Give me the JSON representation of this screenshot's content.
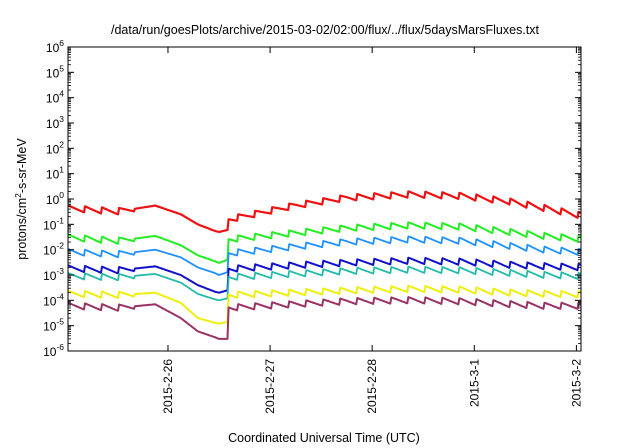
{
  "chart_data": {
    "type": "line",
    "title": "/data/run/goesPlots/archive/2015-03-02/02:00/flux/../flux/5daysMarsFluxes.txt",
    "xlabel": "Coordinated Universal Time (UTC)",
    "ylabel": "protons/cm2-s-sr-MeV",
    "yscale": "log",
    "ylim": [
      1e-06,
      1000000.0
    ],
    "xlim": [
      "2015-02-25T00:30",
      "2015-03-02T01:05"
    ],
    "grid": false,
    "legend": "none",
    "x_ticks": [
      {
        "label": "2015-2-26",
        "time": "2015-02-26T00:00"
      },
      {
        "label": "2015-2-27",
        "time": "2015-02-27T00:00"
      },
      {
        "label": "2015-2-28",
        "time": "2015-02-28T00:00"
      },
      {
        "label": "2015-3-1",
        "time": "2015-03-01T00:00"
      },
      {
        "label": "2015-3-2",
        "time": "2015-03-02T00:00"
      }
    ],
    "y_ticks": [
      {
        "base": "10",
        "exp": "-6",
        "value": 1e-06
      },
      {
        "base": "10",
        "exp": "-5",
        "value": 1e-05
      },
      {
        "base": "10",
        "exp": "-4",
        "value": 0.0001
      },
      {
        "base": "10",
        "exp": "-3",
        "value": 0.001
      },
      {
        "base": "10",
        "exp": "-2",
        "value": 0.01
      },
      {
        "base": "10",
        "exp": "-1",
        "value": 0.1
      },
      {
        "base": "10",
        "exp": "0",
        "value": 1
      },
      {
        "base": "10",
        "exp": "1",
        "value": 10
      },
      {
        "base": "10",
        "exp": "2",
        "value": 100
      },
      {
        "base": "10",
        "exp": "3",
        "value": 1000
      },
      {
        "base": "10",
        "exp": "4",
        "value": 10000
      },
      {
        "base": "10",
        "exp": "5",
        "value": 100000
      },
      {
        "base": "10",
        "exp": "6",
        "value": 1000000
      }
    ],
    "sawtooth_period_hours": 4,
    "series": [
      {
        "color": "#ee1111",
        "width": 2.2,
        "points": [
          [
            "2015-02-25T00:30",
            0.42
          ],
          [
            "2015-02-25T12:00",
            0.32
          ],
          [
            "2015-02-25T21:00",
            0.55
          ],
          [
            "2015-02-26T03:00",
            0.25
          ],
          [
            "2015-02-26T07:00",
            0.1
          ],
          [
            "2015-02-26T11:00",
            0.055
          ],
          [
            "2015-02-26T12:00",
            0.05
          ],
          [
            "2015-02-26T14:00",
            0.06
          ],
          [
            "2015-02-26T14:01",
            0.15
          ],
          [
            "2015-02-27T06:00",
            0.55
          ],
          [
            "2015-02-27T18:00",
            1.1
          ],
          [
            "2015-02-28T09:00",
            1.5
          ],
          [
            "2015-02-28T21:00",
            1.3
          ],
          [
            "2015-03-01T08:00",
            0.8
          ],
          [
            "2015-03-01T16:00",
            0.45
          ],
          [
            "2015-03-02T01:05",
            0.22
          ]
        ]
      },
      {
        "color": "#22ee22",
        "width": 2.0,
        "points": [
          [
            "2015-02-25T00:30",
            0.03
          ],
          [
            "2015-02-25T12:00",
            0.022
          ],
          [
            "2015-02-25T21:00",
            0.035
          ],
          [
            "2015-02-26T03:00",
            0.015
          ],
          [
            "2015-02-26T07:00",
            0.006
          ],
          [
            "2015-02-26T11:00",
            0.0035
          ],
          [
            "2015-02-26T12:00",
            0.003
          ],
          [
            "2015-02-26T14:00",
            0.004
          ],
          [
            "2015-02-26T14:01",
            0.025
          ],
          [
            "2015-02-27T06:00",
            0.045
          ],
          [
            "2015-02-27T18:00",
            0.07
          ],
          [
            "2015-02-28T09:00",
            0.09
          ],
          [
            "2015-02-28T21:00",
            0.08
          ],
          [
            "2015-03-01T08:00",
            0.05
          ],
          [
            "2015-03-01T16:00",
            0.035
          ],
          [
            "2015-03-02T01:05",
            0.026
          ]
        ]
      },
      {
        "color": "#1e90ff",
        "width": 1.8,
        "points": [
          [
            "2015-02-25T00:30",
            0.008
          ],
          [
            "2015-02-25T12:00",
            0.0065
          ],
          [
            "2015-02-25T21:00",
            0.01
          ],
          [
            "2015-02-26T03:00",
            0.005
          ],
          [
            "2015-02-26T07:00",
            0.002
          ],
          [
            "2015-02-26T11:00",
            0.0012
          ],
          [
            "2015-02-26T12:00",
            0.001
          ],
          [
            "2015-02-26T14:00",
            0.0013
          ],
          [
            "2015-02-26T14:01",
            0.007
          ],
          [
            "2015-02-27T06:00",
            0.013
          ],
          [
            "2015-02-27T18:00",
            0.02
          ],
          [
            "2015-02-28T09:00",
            0.025
          ],
          [
            "2015-02-28T21:00",
            0.022
          ],
          [
            "2015-03-01T08:00",
            0.014
          ],
          [
            "2015-03-01T16:00",
            0.01
          ],
          [
            "2015-03-02T01:05",
            0.008
          ]
        ]
      },
      {
        "color": "#1111cc",
        "width": 2.0,
        "points": [
          [
            "2015-02-25T00:30",
            0.0018
          ],
          [
            "2015-02-25T12:00",
            0.0015
          ],
          [
            "2015-02-25T21:00",
            0.0022
          ],
          [
            "2015-02-26T03:00",
            0.001
          ],
          [
            "2015-02-26T07:00",
            0.0004
          ],
          [
            "2015-02-26T11:00",
            0.00022
          ],
          [
            "2015-02-26T12:00",
            0.0002
          ],
          [
            "2015-02-26T14:00",
            0.00025
          ],
          [
            "2015-02-26T14:01",
            0.0017
          ],
          [
            "2015-02-27T06:00",
            0.0024
          ],
          [
            "2015-02-27T18:00",
            0.003
          ],
          [
            "2015-02-28T09:00",
            0.0036
          ],
          [
            "2015-02-28T21:00",
            0.0033
          ],
          [
            "2015-03-01T08:00",
            0.0025
          ],
          [
            "2015-03-01T16:00",
            0.0022
          ],
          [
            "2015-03-02T01:05",
            0.002
          ]
        ]
      },
      {
        "color": "#22bbaa",
        "width": 1.8,
        "points": [
          [
            "2015-02-25T00:30",
            0.0009
          ],
          [
            "2015-02-25T12:00",
            0.0008
          ],
          [
            "2015-02-25T21:00",
            0.0011
          ],
          [
            "2015-02-26T03:00",
            0.0005
          ],
          [
            "2015-02-26T07:00",
            0.00018
          ],
          [
            "2015-02-26T11:00",
            0.00011
          ],
          [
            "2015-02-26T12:00",
            0.0001
          ],
          [
            "2015-02-26T14:00",
            0.00012
          ],
          [
            "2015-02-26T14:01",
            0.0008
          ],
          [
            "2015-02-27T06:00",
            0.0011
          ],
          [
            "2015-02-27T18:00",
            0.0014
          ],
          [
            "2015-02-28T09:00",
            0.0016
          ],
          [
            "2015-02-28T21:00",
            0.0015
          ],
          [
            "2015-03-01T08:00",
            0.0012
          ],
          [
            "2015-03-01T16:00",
            0.001
          ],
          [
            "2015-03-02T01:05",
            0.0009
          ]
        ]
      },
      {
        "color": "#eeee11",
        "width": 2.0,
        "points": [
          [
            "2015-02-25T00:30",
            0.00018
          ],
          [
            "2015-02-25T12:00",
            0.00016
          ],
          [
            "2015-02-25T21:00",
            0.0002
          ],
          [
            "2015-02-26T03:00",
            8e-05
          ],
          [
            "2015-02-26T07:00",
            2e-05
          ],
          [
            "2015-02-26T11:00",
            1.3e-05
          ],
          [
            "2015-02-26T12:00",
            1.2e-05
          ],
          [
            "2015-02-26T14:00",
            1.4e-05
          ],
          [
            "2015-02-26T14:01",
            0.00016
          ],
          [
            "2015-02-27T06:00",
            0.0002
          ],
          [
            "2015-02-27T18:00",
            0.00024
          ],
          [
            "2015-02-28T09:00",
            0.00028
          ],
          [
            "2015-02-28T21:00",
            0.00026
          ],
          [
            "2015-03-01T08:00",
            0.0002
          ],
          [
            "2015-03-01T16:00",
            0.00018
          ],
          [
            "2015-03-02T01:05",
            0.00017
          ]
        ]
      },
      {
        "color": "#993366",
        "width": 2.0,
        "points": [
          [
            "2015-02-25T00:30",
            6e-05
          ],
          [
            "2015-02-25T12:00",
            5e-05
          ],
          [
            "2015-02-25T21:00",
            7e-05
          ],
          [
            "2015-02-26T03:00",
            2e-05
          ],
          [
            "2015-02-26T07:00",
            6e-06
          ],
          [
            "2015-02-26T11:00",
            3.5e-06
          ],
          [
            "2015-02-26T12:00",
            3e-06
          ],
          [
            "2015-02-26T14:00",
            3e-06
          ],
          [
            "2015-02-26T14:01",
            5e-05
          ],
          [
            "2015-02-27T06:00",
            7e-05
          ],
          [
            "2015-02-27T18:00",
            9e-05
          ],
          [
            "2015-02-28T09:00",
            0.0001
          ],
          [
            "2015-02-28T21:00",
            9e-05
          ],
          [
            "2015-03-01T08:00",
            7e-05
          ],
          [
            "2015-03-01T16:00",
            6e-05
          ],
          [
            "2015-03-02T01:05",
            6e-05
          ]
        ]
      }
    ]
  }
}
